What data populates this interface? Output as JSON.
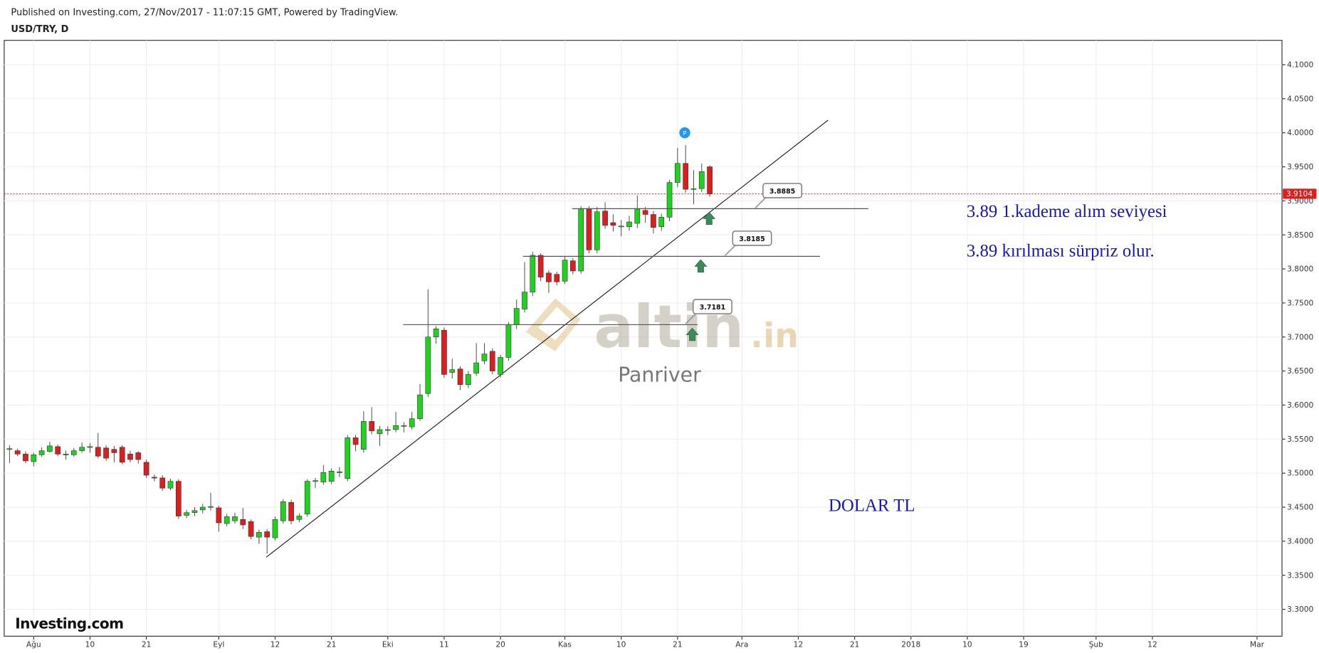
{
  "chart_data": {
    "type": "candlestick",
    "title": "Published on Investing.com, 27/Nov/2017 - 11:07:15 GMT, Powered by TradingView.",
    "subtitle": "USD/TRY, D",
    "logo": "Investing.com",
    "watermark": "altin",
    "watermark_suffix": ".in",
    "watermark_author": "Panriver",
    "marker": "P",
    "up_color": "#1ed21e",
    "down_color": "#dc1e1e",
    "grid": true,
    "xlim": [
      -3.66,
      155.1
    ],
    "ylim": [
      3.2605,
      4.1358
    ],
    "xticks": [
      {
        "value": 0,
        "label": "Ağu"
      },
      {
        "value": 7,
        "label": "10"
      },
      {
        "value": 14,
        "label": "21"
      },
      {
        "value": 23,
        "label": "Eyl"
      },
      {
        "value": 30,
        "label": "12"
      },
      {
        "value": 37,
        "label": "21"
      },
      {
        "value": 44,
        "label": "Eki"
      },
      {
        "value": 51,
        "label": "11"
      },
      {
        "value": 58,
        "label": "20"
      },
      {
        "value": 66,
        "label": "Kas"
      },
      {
        "value": 73,
        "label": "10"
      },
      {
        "value": 80,
        "label": "21"
      },
      {
        "value": 88,
        "label": "Ara"
      },
      {
        "value": 95,
        "label": "12"
      },
      {
        "value": 102,
        "label": "21"
      },
      {
        "value": 109,
        "label": "2018"
      },
      {
        "value": 116,
        "label": "10"
      },
      {
        "value": 123,
        "label": "19"
      },
      {
        "value": 132,
        "label": "Şub"
      },
      {
        "value": 139,
        "label": "12"
      },
      {
        "value": 152,
        "label": "Mar"
      }
    ],
    "yticks": [
      {
        "value": 3.3,
        "label": "3.3000"
      },
      {
        "value": 3.35,
        "label": "3.3500"
      },
      {
        "value": 3.4,
        "label": "3.4000"
      },
      {
        "value": 3.45,
        "label": "3.4500"
      },
      {
        "value": 3.5,
        "label": "3.5000"
      },
      {
        "value": 3.55,
        "label": "3.5500"
      },
      {
        "value": 3.6,
        "label": "3.6000"
      },
      {
        "value": 3.65,
        "label": "3.6500"
      },
      {
        "value": 3.7,
        "label": "3.7000"
      },
      {
        "value": 3.75,
        "label": "3.7500"
      },
      {
        "value": 3.8,
        "label": "3.8000"
      },
      {
        "value": 3.85,
        "label": "3.8500"
      },
      {
        "value": 3.9,
        "label": "3.9000"
      },
      {
        "value": 3.95,
        "label": "3.9500"
      },
      {
        "value": 4.0,
        "label": "4.0000"
      },
      {
        "value": 4.05,
        "label": "4.0500"
      },
      {
        "value": 4.1,
        "label": "4.1000"
      }
    ],
    "last_price": {
      "value": 3.9104,
      "label": "3.9104"
    },
    "x": [
      -3,
      -2,
      -1,
      0,
      1,
      2,
      3,
      4,
      5,
      6,
      7,
      8,
      9,
      10,
      11,
      12,
      13,
      14,
      15,
      16,
      17,
      18,
      19,
      20,
      21,
      22,
      23,
      24,
      25,
      26,
      27,
      28,
      29,
      30,
      31,
      32,
      33,
      34,
      35,
      36,
      37,
      38,
      39,
      40,
      41,
      42,
      43,
      44,
      45,
      46,
      47,
      48,
      49,
      50,
      51,
      52,
      53,
      54,
      55,
      56,
      57,
      58,
      59,
      60,
      61,
      62,
      63,
      64,
      65,
      66,
      67,
      68,
      69,
      70,
      71,
      72,
      73,
      74,
      75,
      76,
      77,
      78,
      79,
      80,
      81,
      82,
      83,
      84
    ],
    "open": [
      3.535,
      3.533,
      3.528,
      3.517,
      3.527,
      3.532,
      3.539,
      3.527,
      3.527,
      3.533,
      3.538,
      3.538,
      3.537,
      3.535,
      3.538,
      3.528,
      3.53,
      3.516,
      3.494,
      3.493,
      3.478,
      3.488,
      3.438,
      3.442,
      3.446,
      3.45,
      3.449,
      3.426,
      3.43,
      3.432,
      3.429,
      3.406,
      3.414,
      3.405,
      3.43,
      3.457,
      3.432,
      3.44,
      3.488,
      3.487,
      3.488,
      3.501,
      3.492,
      3.552,
      3.535,
      3.576,
      3.558,
      3.563,
      3.564,
      3.569,
      3.568,
      3.58,
      3.617,
      3.7,
      3.71,
      3.648,
      3.653,
      3.63,
      3.647,
      3.665,
      3.679,
      3.645,
      3.67,
      3.718,
      3.741,
      3.766,
      3.82,
      3.794,
      3.792,
      3.782,
      3.812,
      3.797,
      3.888,
      3.828,
      3.885,
      3.868,
      3.862,
      3.862,
      3.867,
      3.886,
      3.88,
      3.862,
      3.876,
      3.927,
      3.955,
      3.917,
      3.918,
      3.95
    ],
    "high": [
      3.541,
      3.536,
      3.532,
      3.53,
      3.538,
      3.546,
      3.542,
      3.533,
      3.537,
      3.545,
      3.544,
      3.559,
      3.541,
      3.54,
      3.541,
      3.533,
      3.532,
      3.52,
      3.498,
      3.497,
      3.492,
      3.491,
      3.446,
      3.45,
      3.455,
      3.471,
      3.452,
      3.44,
      3.442,
      3.449,
      3.432,
      3.417,
      3.418,
      3.436,
      3.462,
      3.461,
      3.441,
      3.491,
      3.493,
      3.512,
      3.507,
      3.509,
      3.556,
      3.556,
      3.591,
      3.597,
      3.569,
      3.569,
      3.59,
      3.575,
      3.59,
      3.631,
      3.77,
      3.716,
      3.714,
      3.668,
      3.657,
      3.65,
      3.691,
      3.691,
      3.683,
      3.674,
      3.722,
      3.755,
      3.81,
      3.825,
      3.823,
      3.798,
      3.796,
      3.818,
      3.816,
      3.892,
      3.892,
      3.891,
      3.898,
      3.88,
      3.872,
      3.878,
      3.908,
      3.891,
      3.885,
      3.881,
      3.931,
      3.978,
      3.982,
      3.945,
      3.955,
      3.952
    ],
    "low": [
      3.515,
      3.525,
      3.515,
      3.51,
      3.524,
      3.53,
      3.525,
      3.52,
      3.524,
      3.53,
      3.53,
      3.522,
      3.518,
      3.516,
      3.513,
      3.516,
      3.514,
      3.493,
      3.488,
      3.474,
      3.475,
      3.433,
      3.434,
      3.437,
      3.441,
      3.445,
      3.414,
      3.422,
      3.426,
      3.418,
      3.403,
      3.396,
      3.382,
      3.401,
      3.426,
      3.425,
      3.428,
      3.436,
      3.478,
      3.483,
      3.484,
      3.494,
      3.488,
      3.532,
      3.53,
      3.557,
      3.54,
      3.556,
      3.56,
      3.56,
      3.564,
      3.577,
      3.612,
      3.69,
      3.64,
      3.639,
      3.622,
      3.625,
      3.643,
      3.66,
      3.645,
      3.641,
      3.665,
      3.712,
      3.736,
      3.76,
      3.782,
      3.765,
      3.776,
      3.778,
      3.792,
      3.793,
      3.823,
      3.823,
      3.859,
      3.855,
      3.848,
      3.856,
      3.86,
      3.868,
      3.852,
      3.856,
      3.87,
      3.92,
      3.912,
      3.895,
      3.913,
      3.906
    ],
    "close": [
      3.536,
      3.528,
      3.518,
      3.527,
      3.533,
      3.54,
      3.528,
      3.528,
      3.533,
      3.538,
      3.539,
      3.525,
      3.522,
      3.53,
      3.516,
      3.52,
      3.52,
      3.497,
      3.493,
      3.478,
      3.488,
      3.437,
      3.442,
      3.445,
      3.45,
      3.451,
      3.427,
      3.436,
      3.436,
      3.424,
      3.407,
      3.413,
      3.406,
      3.432,
      3.458,
      3.43,
      3.437,
      3.488,
      3.489,
      3.501,
      3.503,
      3.502,
      3.552,
      3.542,
      3.576,
      3.562,
      3.564,
      3.564,
      3.57,
      3.57,
      3.58,
      3.615,
      3.7,
      3.712,
      3.645,
      3.652,
      3.63,
      3.645,
      3.662,
      3.675,
      3.65,
      3.67,
      3.718,
      3.742,
      3.766,
      3.82,
      3.788,
      3.781,
      3.781,
      3.813,
      3.797,
      3.888,
      3.828,
      3.884,
      3.864,
      3.864,
      3.863,
      3.869,
      3.888,
      3.88,
      3.861,
      3.876,
      3.927,
      3.955,
      3.917,
      3.918,
      3.943,
      3.91
    ],
    "trendline": {
      "x": [
        28.9,
        98.7
      ],
      "y": [
        3.3765,
        4.0185
      ]
    },
    "levels": [
      {
        "value": 3.8885,
        "from": 66.9,
        "to": 103.7
      },
      {
        "value": 3.8185,
        "from": 60.8,
        "to": 97.7
      },
      {
        "value": 3.7181,
        "from": 45.9,
        "to": 82.5
      }
    ],
    "annotations": [
      "3.89 1.kademe alım seviyesi",
      "3.89 kırılması sürpriz olur.",
      "DOLAR TL"
    ]
  }
}
